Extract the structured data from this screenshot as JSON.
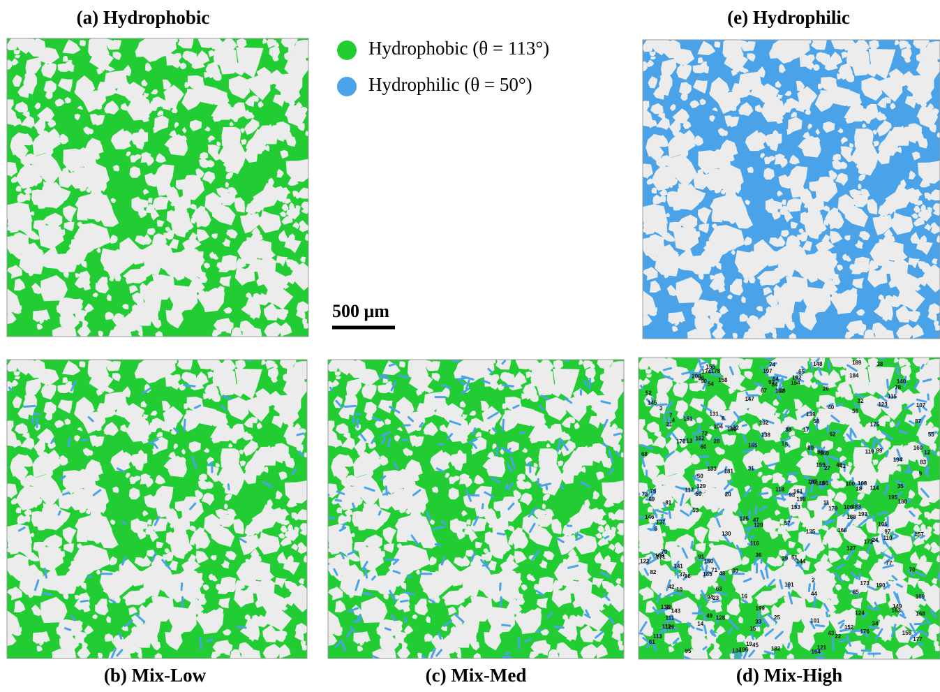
{
  "panels": {
    "a": {
      "label": "(a) Hydrophobic"
    },
    "b": {
      "label": "(b) Mix-Low"
    },
    "c": {
      "label": "(c) Mix-Med"
    },
    "d": {
      "label": "(d) Mix-High",
      "site_labels": [
        "1",
        "2",
        "3",
        "4",
        "5",
        "6",
        "7",
        "8",
        "9",
        "10",
        "11",
        "12",
        "13",
        "14",
        "15",
        "16",
        "17",
        "18",
        "19",
        "20",
        "21",
        "22",
        "23",
        "24",
        "25",
        "26",
        "27",
        "28",
        "29",
        "30",
        "31",
        "32",
        "33",
        "34",
        "35",
        "36",
        "37",
        "38",
        "39",
        "40",
        "41",
        "42",
        "43",
        "44",
        "45",
        "46",
        "47",
        "48",
        "49",
        "50",
        "51",
        "52",
        "53",
        "54",
        "55",
        "56",
        "57",
        "58",
        "59",
        "60",
        "61",
        "62",
        "63",
        "64",
        "65",
        "66",
        "67",
        "68",
        "69",
        "70",
        "71",
        "72",
        "73",
        "74",
        "75",
        "76",
        "77",
        "78",
        "79",
        "80",
        "81",
        "82",
        "83",
        "84",
        "85",
        "86",
        "87",
        "88",
        "89",
        "90",
        "91",
        "92",
        "93",
        "94",
        "95",
        "96",
        "97",
        "98",
        "99",
        "100",
        "101",
        "102",
        "103",
        "104",
        "105",
        "106",
        "107",
        "108",
        "109",
        "110",
        "111",
        "112",
        "113",
        "114",
        "115",
        "116",
        "117",
        "118",
        "119",
        "120",
        "121",
        "122",
        "123",
        "124",
        "125",
        "126",
        "127",
        "128",
        "129",
        "130",
        "131",
        "132",
        "133",
        "134",
        "135",
        "136",
        "137",
        "138",
        "139",
        "140",
        "141",
        "142",
        "143",
        "144",
        "145",
        "146",
        "147",
        "148",
        "149",
        "150",
        "151",
        "152",
        "153",
        "154",
        "155",
        "156",
        "157",
        "158",
        "159",
        "160",
        "161",
        "162",
        "163",
        "164",
        "165",
        "166",
        "167",
        "168",
        "169",
        "170",
        "171",
        "172",
        "173",
        "174",
        "175",
        "176",
        "177",
        "178",
        "179",
        "180",
        "181",
        "182",
        "183",
        "184",
        "185",
        "186",
        "187",
        "188",
        "189",
        "190",
        "191",
        "192",
        "193",
        "194",
        "195",
        "196",
        "197",
        "198",
        "199",
        "200"
      ]
    },
    "e": {
      "label": "(e) Hydrophilic"
    }
  },
  "legend": [
    {
      "name": "Hydrophobic (θ = 113°)",
      "color": "#22cc33"
    },
    {
      "name": "Hydrophilic (θ = 50°)",
      "color": "#4aa3e8"
    }
  ],
  "scale_bar": {
    "label": "500 μm"
  }
}
